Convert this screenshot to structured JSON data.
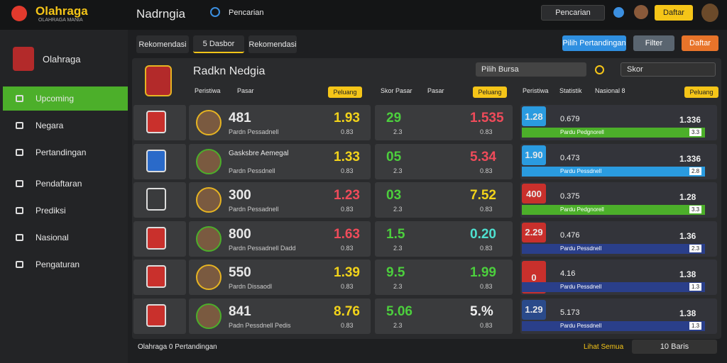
{
  "topbar": {
    "brand": "Olahraga",
    "brand_sub": "OLAHRAGA MANIA",
    "title": "Nadrngia",
    "search": "Pencarian",
    "account": "Pencarian",
    "action": "Daftar"
  },
  "sidebar": {
    "profile": "Olahraga",
    "items": [
      "Upcoming",
      "Negara",
      "Pertandingan",
      "Pendaftaran",
      "Prediksi",
      "Nasional",
      "Pengaturan"
    ]
  },
  "tabs": [
    "Rekomendasi",
    "5 Dasbor",
    "Rekomendasi"
  ],
  "actions": [
    "Pilih Pertandingan",
    "Filter",
    "Daftar"
  ],
  "panel": {
    "title": "Radkn Nedgia",
    "filter": "Pilih Bursa",
    "filter2": "Skor",
    "columns": [
      "Peristiwa",
      "Pasar",
      "Peluang",
      "Skor Pasar",
      "Pasar",
      "Peluang",
      "Peristiwa",
      "Statistik",
      "Nasional 8",
      "Peluang"
    ]
  },
  "rows": [
    {
      "score": "481",
      "name": "Pardn Pessadnell",
      "odds1": "1.93",
      "sub1": "0.83",
      "odds2": "29",
      "sub2": "2.3",
      "odds3": "1.535",
      "sub3": "0.83",
      "box": "1.28",
      "box_sub": "0.679",
      "bar_text": "Pardu Pedgnorell",
      "right": "1.336",
      "right_sub": "3.3"
    },
    {
      "score": "Gasksbre Aemegal",
      "name": "Pardn Pessdnell",
      "odds1": "1.33",
      "sub1": "0.83",
      "odds2": "05",
      "sub2": "2.3",
      "odds3": "5.34",
      "sub3": "0.83",
      "box": "1.90",
      "box_sub": "0.473",
      "bar_text": "Pardu Pessdnell",
      "right": "1.336",
      "right_sub": "2.8"
    },
    {
      "score": "300",
      "name": "Pardn Pessadnell",
      "odds1": "1.23",
      "sub1": "0.83",
      "odds2": "03",
      "sub2": "2.3",
      "odds3": "7.52",
      "sub3": "0.83",
      "box": "400",
      "box_sub": "0.375",
      "bar_text": "Pardu Pedgnorell",
      "right": "1.28",
      "right_sub": "3.3"
    },
    {
      "score": "800",
      "name": "Pardn Pessadnell Dadd",
      "odds1": "1.63",
      "sub1": "0.83",
      "odds2": "1.5",
      "sub2": "2.3",
      "odds3": "0.20",
      "sub3": "0.83",
      "box": "2.29",
      "box_sub": "0.476",
      "bar_text": "Pardu Pessdnell",
      "right": "1.36",
      "right_sub": "2.3"
    },
    {
      "score": "550",
      "name": "Pardn Dissaodl",
      "odds1": "1.39",
      "sub1": "0.83",
      "odds2": "9.5",
      "sub2": "2.3",
      "odds3": "1.99",
      "sub3": "0.83",
      "box": "0",
      "box_sub": "4.16",
      "bar_text": "Pardu Pessdnell",
      "right": "1.38",
      "right_sub": "1.3"
    },
    {
      "score": "841",
      "name": "Padn Pessdnell Pedis",
      "odds1": "8.76",
      "sub1": "0.83",
      "odds2": "5.06",
      "sub2": "2.3",
      "odds3": "5.%",
      "sub3": "0.83",
      "box": "1.29",
      "box_sub": "5.173",
      "bar_text": "Pardu Pessdnell",
      "right": "1.38",
      "right_sub": "1.3"
    }
  ],
  "footer": {
    "left": "Olahraga 0 Pertandingan",
    "right": "Lihat Semua",
    "page": "10 Baris"
  }
}
